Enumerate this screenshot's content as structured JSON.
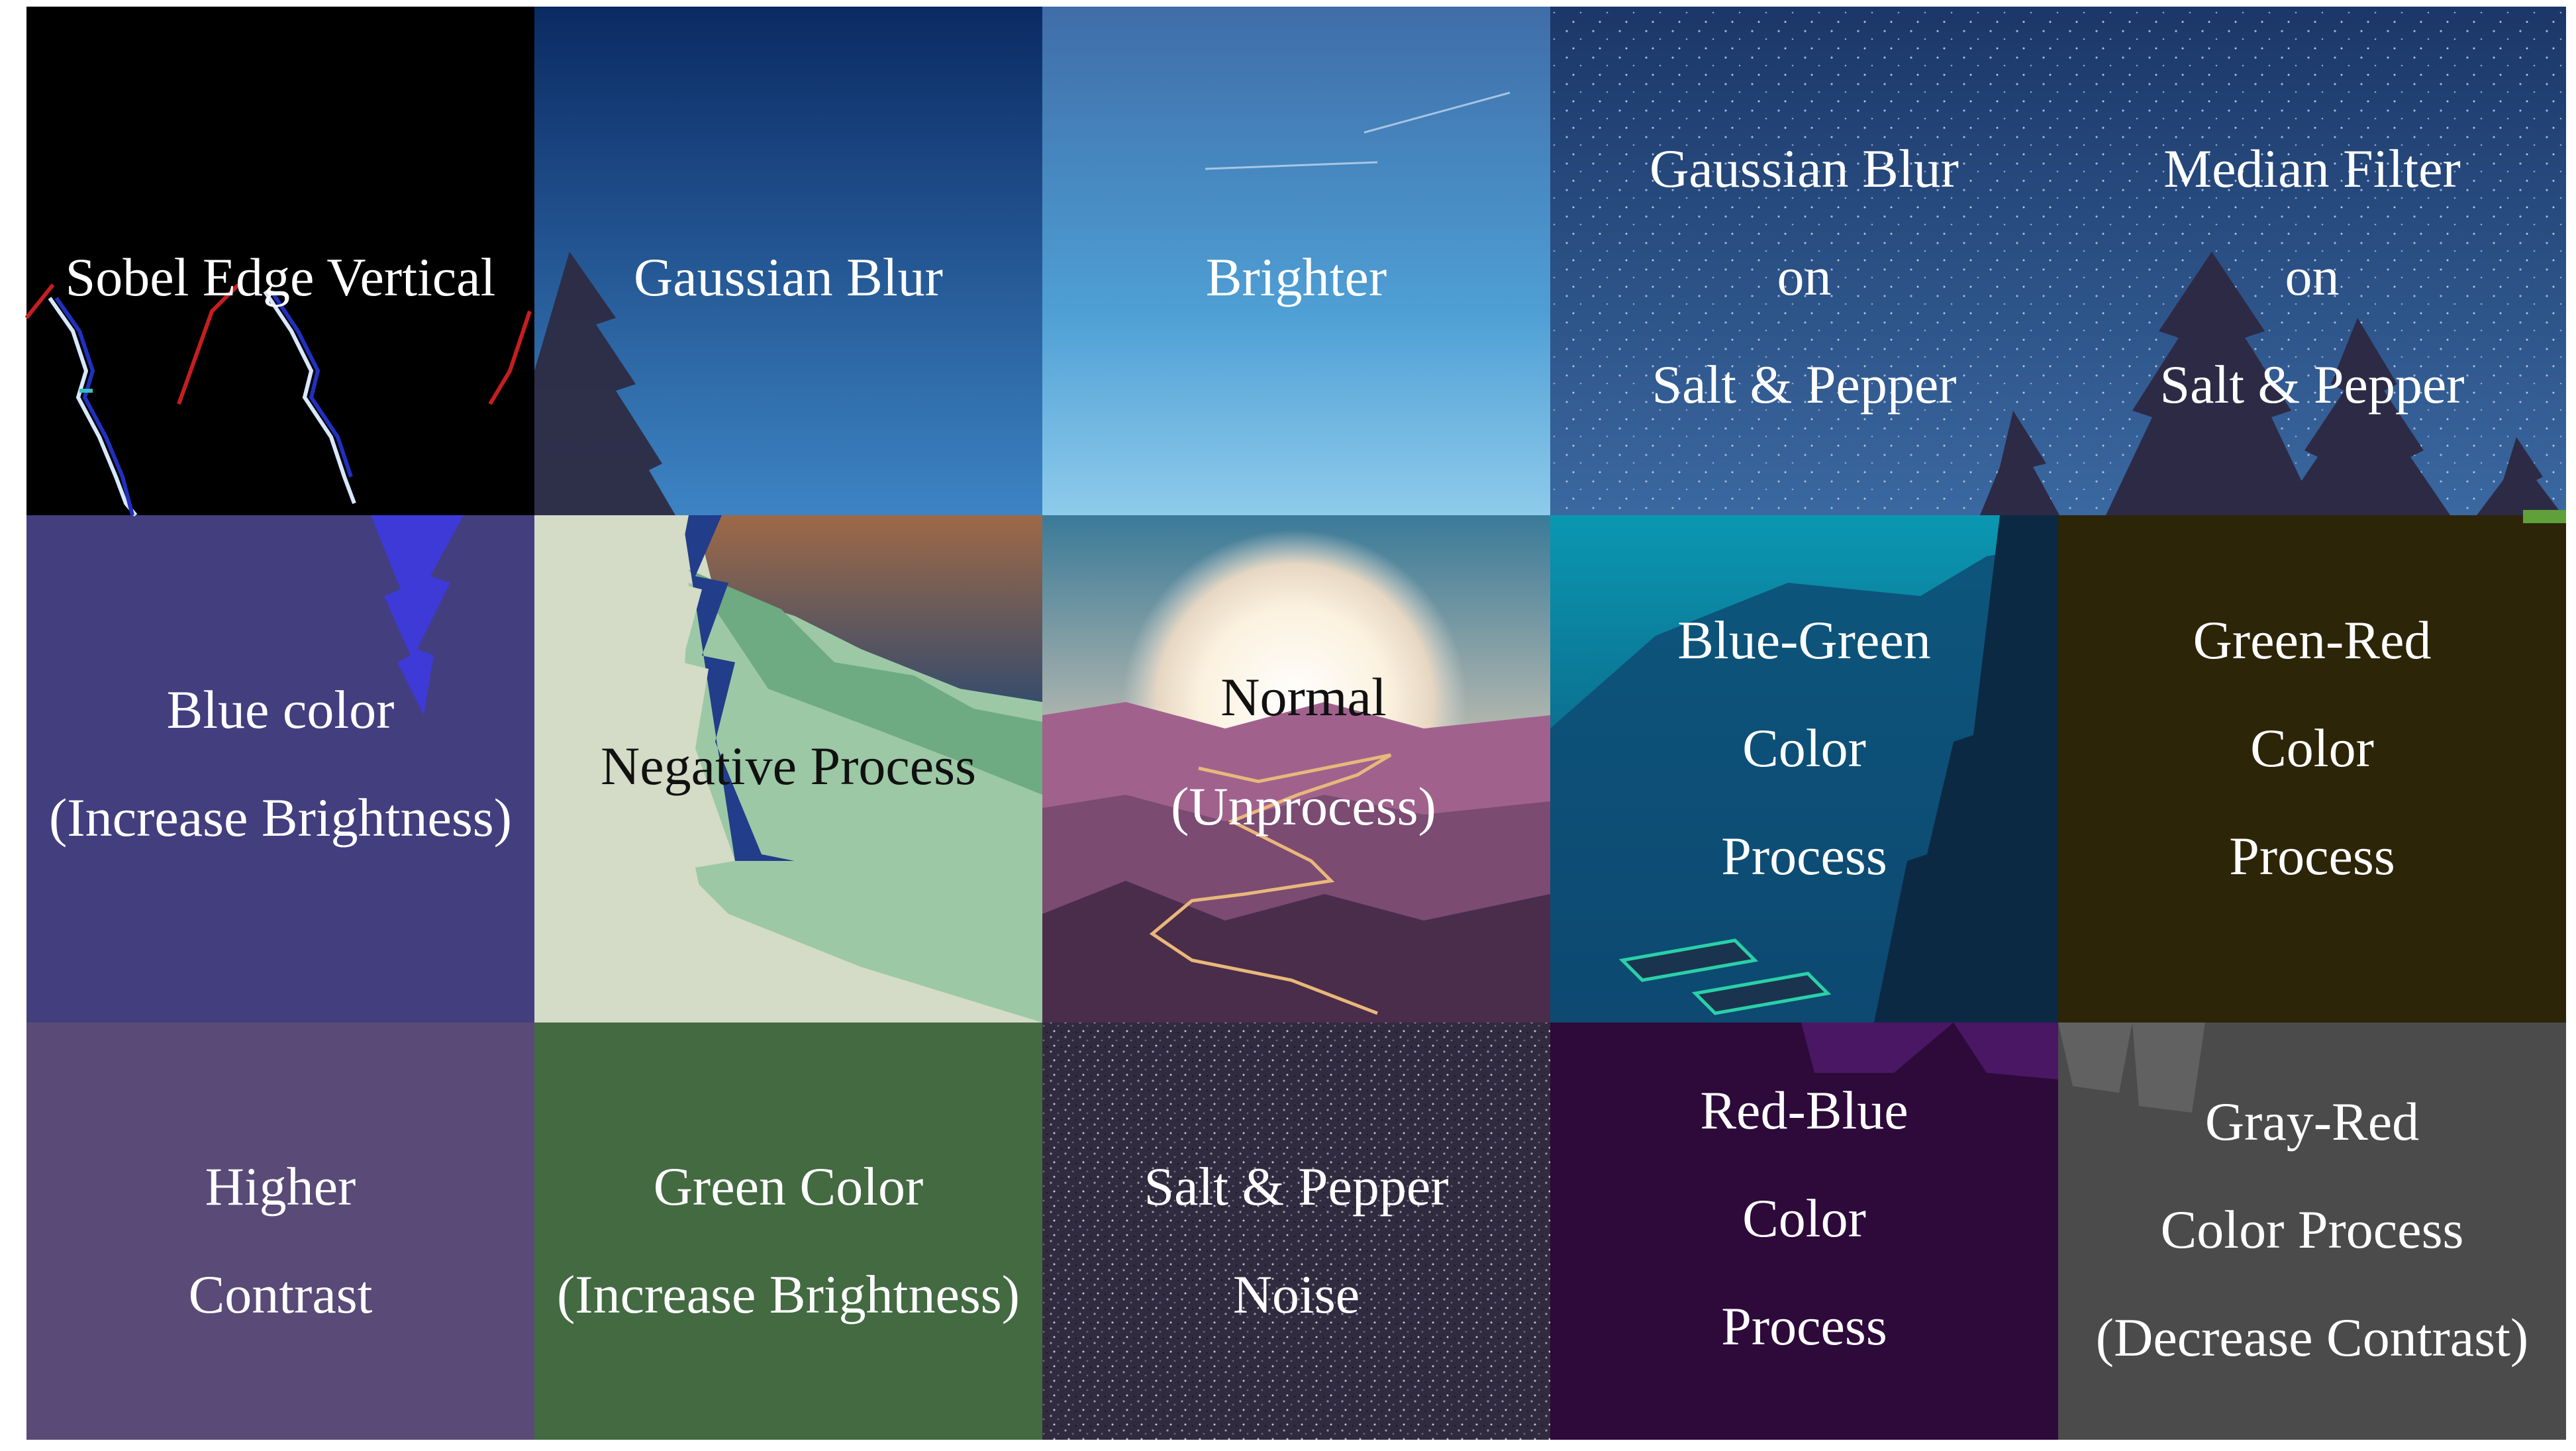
{
  "title": "",
  "tiles": [
    {
      "id": "sobel-edge-vertical",
      "lines": [
        "Sobel Edge Vertical"
      ]
    },
    {
      "id": "gaussian-blur",
      "lines": [
        "Gaussian Blur"
      ]
    },
    {
      "id": "brighter",
      "lines": [
        "Brighter"
      ]
    },
    {
      "id": "gaussian-blur-salt-pepper",
      "lines": [
        "Gaussian Blur",
        "on",
        "Salt & Pepper"
      ]
    },
    {
      "id": "median-filter-salt-pepper",
      "lines": [
        "Median Filter",
        "on",
        "Salt & Pepper"
      ]
    },
    {
      "id": "blue-color",
      "lines": [
        "Blue color",
        "(Increase Brightness)"
      ]
    },
    {
      "id": "negative-process",
      "lines": [
        "Negative Process"
      ]
    },
    {
      "id": "normal",
      "lines": [
        "Normal",
        "(Unprocess)"
      ]
    },
    {
      "id": "blue-green",
      "lines": [
        "Blue-Green",
        "Color",
        "Process"
      ]
    },
    {
      "id": "green-red",
      "lines": [
        "Green-Red",
        "Color",
        "Process"
      ]
    },
    {
      "id": "higher-contrast",
      "lines": [
        "Higher",
        "Contrast"
      ]
    },
    {
      "id": "green-color",
      "lines": [
        "Green Color",
        "(Increase Brightness)"
      ]
    },
    {
      "id": "salt-pepper-noise",
      "lines": [
        "Salt & Pepper",
        "Noise"
      ]
    },
    {
      "id": "red-blue",
      "lines": [
        "Red-Blue",
        "Color",
        "Process"
      ]
    },
    {
      "id": "gray-red",
      "lines": [
        "Gray-Red",
        "Color Process",
        "(Decrease Contrast)"
      ]
    }
  ],
  "colors": {
    "black": "#000000",
    "navy": "#0c2f6c",
    "sky": "#3d7fc0",
    "night": "#1c3d6e",
    "blue_tile": "#433e7e",
    "negative": "#d4dbc6",
    "blue_green": "#0d5a84",
    "olive": "#2d2508",
    "higher_contrast": "#594a77",
    "green_tile": "#436a41",
    "noise": "#312b3f",
    "red_blue": "#2d0a3a",
    "gray": "#4b4b4b",
    "tree": "#2e2940",
    "sunset": "#a66a45",
    "mountain": "#7b4b72"
  }
}
